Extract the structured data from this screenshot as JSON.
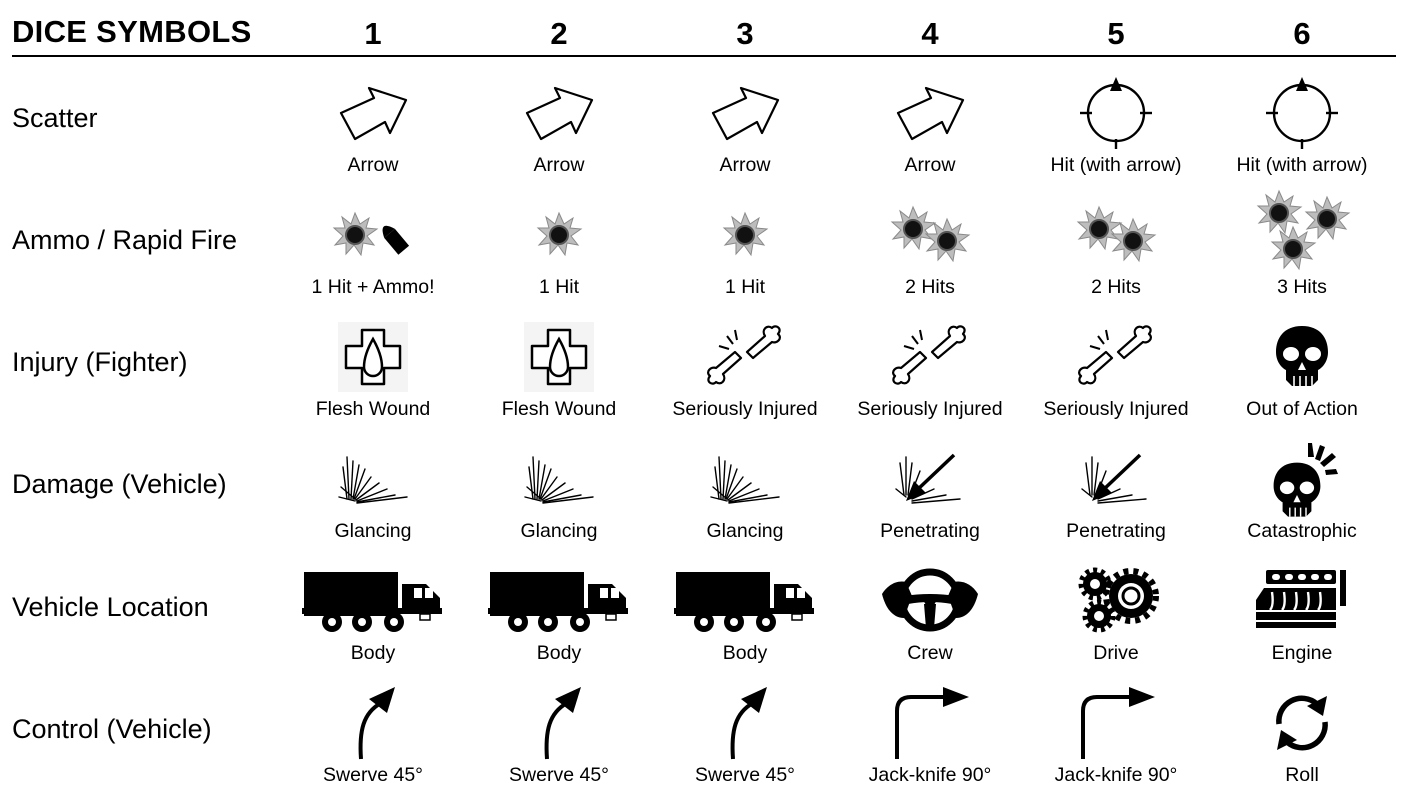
{
  "title": "DICE SYMBOLS",
  "columns": [
    "1",
    "2",
    "3",
    "4",
    "5",
    "6"
  ],
  "rows": [
    {
      "label": "Scatter",
      "cells": [
        {
          "icon": "scatter-arrow-icon",
          "caption": "Arrow"
        },
        {
          "icon": "scatter-arrow-icon",
          "caption": "Arrow"
        },
        {
          "icon": "scatter-arrow-icon",
          "caption": "Arrow"
        },
        {
          "icon": "scatter-arrow-icon",
          "caption": "Arrow"
        },
        {
          "icon": "crosshair-hit-icon",
          "caption": "Hit (with arrow)"
        },
        {
          "icon": "crosshair-hit-icon",
          "caption": "Hit (with arrow)"
        }
      ]
    },
    {
      "label": "Ammo / Rapid Fire",
      "cells": [
        {
          "icon": "bullet-hole-ammo-icon",
          "caption": "1 Hit + Ammo!"
        },
        {
          "icon": "bullet-hole-icon",
          "caption": "1 Hit"
        },
        {
          "icon": "bullet-hole-icon",
          "caption": "1 Hit"
        },
        {
          "icon": "two-bullet-holes-icon",
          "caption": "2 Hits"
        },
        {
          "icon": "two-bullet-holes-icon",
          "caption": "2 Hits"
        },
        {
          "icon": "three-bullet-holes-icon",
          "caption": "3 Hits"
        }
      ]
    },
    {
      "label": "Injury (Fighter)",
      "cells": [
        {
          "icon": "medical-cross-icon",
          "caption": "Flesh Wound"
        },
        {
          "icon": "medical-cross-icon",
          "caption": "Flesh Wound"
        },
        {
          "icon": "broken-bone-icon",
          "caption": "Seriously Injured"
        },
        {
          "icon": "broken-bone-icon",
          "caption": "Seriously Injured"
        },
        {
          "icon": "broken-bone-icon",
          "caption": "Seriously Injured"
        },
        {
          "icon": "skull-icon",
          "caption": "Out of Action"
        }
      ]
    },
    {
      "label": "Damage (Vehicle)",
      "cells": [
        {
          "icon": "glancing-impact-icon",
          "caption": "Glancing"
        },
        {
          "icon": "glancing-impact-icon",
          "caption": "Glancing"
        },
        {
          "icon": "glancing-impact-icon",
          "caption": "Glancing"
        },
        {
          "icon": "penetrating-impact-icon",
          "caption": "Penetrating"
        },
        {
          "icon": "penetrating-impact-icon",
          "caption": "Penetrating"
        },
        {
          "icon": "cracked-skull-icon",
          "caption": "Catastrophic"
        }
      ]
    },
    {
      "label": "Vehicle Location",
      "cells": [
        {
          "icon": "truck-icon",
          "caption": "Body"
        },
        {
          "icon": "truck-icon",
          "caption": "Body"
        },
        {
          "icon": "truck-icon",
          "caption": "Body"
        },
        {
          "icon": "steering-wheel-icon",
          "caption": "Crew"
        },
        {
          "icon": "gears-icon",
          "caption": "Drive"
        },
        {
          "icon": "engine-icon",
          "caption": "Engine"
        }
      ]
    },
    {
      "label": "Control (Vehicle)",
      "cells": [
        {
          "icon": "swerve-arrow-icon",
          "caption": "Swerve 45°"
        },
        {
          "icon": "swerve-arrow-icon",
          "caption": "Swerve 45°"
        },
        {
          "icon": "swerve-arrow-icon",
          "caption": "Swerve 45°"
        },
        {
          "icon": "jackknife-arrow-icon",
          "caption": "Jack-knife 90°"
        },
        {
          "icon": "jackknife-arrow-icon",
          "caption": "Jack-knife 90°"
        },
        {
          "icon": "roll-arrows-icon",
          "caption": "Roll"
        }
      ]
    }
  ]
}
